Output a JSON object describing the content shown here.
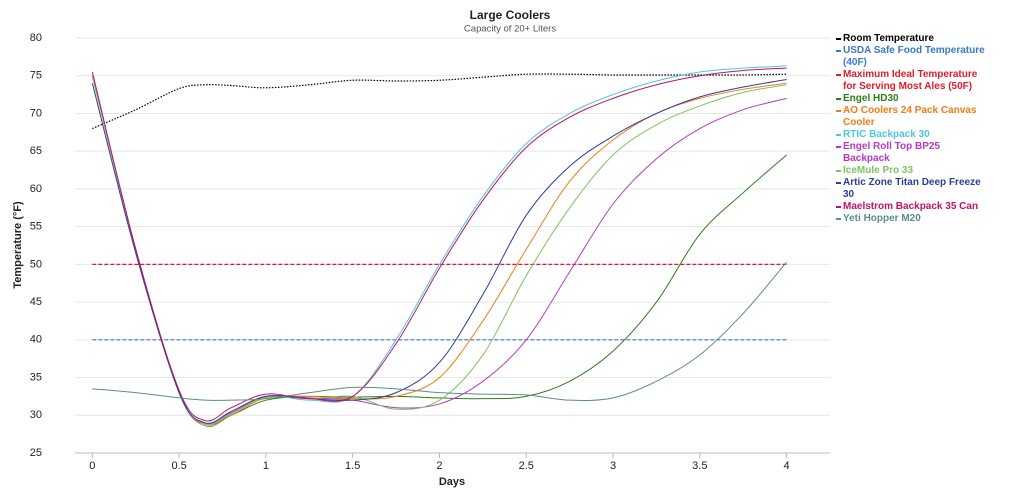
{
  "chart_data": {
    "type": "line",
    "title": "Large Coolers",
    "subtitle": "Capacity of 20+ Liters",
    "x_label": "Days",
    "y_label": "Temperature (°F)",
    "x": [
      0,
      0.25,
      0.5,
      0.65,
      0.8,
      1,
      1.25,
      1.5,
      1.75,
      2,
      2.25,
      2.5,
      2.75,
      3,
      3.25,
      3.5,
      3.75,
      4
    ],
    "xlim": [
      -0.1,
      4.25
    ],
    "xticks": [
      0,
      0.5,
      1,
      1.5,
      2,
      2.5,
      3,
      3.5,
      4
    ],
    "ylim": [
      25,
      80
    ],
    "yticks": [
      25,
      30,
      35,
      40,
      45,
      50,
      55,
      60,
      65,
      70,
      75,
      80
    ],
    "grid": true,
    "legend": "right",
    "series": [
      {
        "name": "Room Temperature",
        "color": "#000000",
        "style": "dotted",
        "values": [
          68,
          70.5,
          73.3,
          73.8,
          73.7,
          73.4,
          73.8,
          74.4,
          74.3,
          74.4,
          74.8,
          75.2,
          75.2,
          75.1,
          75.1,
          75.1,
          75.1,
          75.2
        ]
      },
      {
        "name": "USDA Safe Food Temperature (40F)",
        "color": "#3a78c9",
        "style": "dashed",
        "values": [
          40,
          40,
          40,
          40,
          40,
          40,
          40,
          40,
          40,
          40,
          40,
          40,
          40,
          40,
          40,
          40,
          40,
          40
        ]
      },
      {
        "name": "Maximum Ideal Temperature for Serving Most Ales (50F)",
        "color": "#e01a2a",
        "style": "dashed",
        "values": [
          50,
          50,
          50,
          50,
          50,
          50,
          50,
          50,
          50,
          50,
          50,
          50,
          50,
          50,
          50,
          50,
          50,
          50
        ]
      },
      {
        "name": "Engel HD30",
        "color": "#2e7d1a",
        "style": "solid",
        "values": [
          75,
          52,
          33,
          28.8,
          30,
          32,
          32.5,
          32.4,
          32.5,
          32.3,
          32.2,
          32.5,
          34.5,
          38.5,
          45,
          54,
          59.5,
          64.5
        ]
      },
      {
        "name": "AO Coolers 24 Pack Canvas Cooler",
        "color": "#f07d12",
        "style": "solid",
        "values": [
          75,
          52,
          33,
          28.6,
          30,
          32.3,
          32.5,
          32.2,
          32.5,
          35,
          42.5,
          52,
          61,
          66.5,
          70,
          72,
          73.2,
          74
        ]
      },
      {
        "name": "RTIC Backpack 30",
        "color": "#4dc8e0",
        "style": "solid",
        "values": [
          75,
          52,
          33,
          28.8,
          30.2,
          32.5,
          32,
          32.5,
          40,
          50,
          59,
          66,
          70,
          72.5,
          74.3,
          75.5,
          76,
          76.3
        ]
      },
      {
        "name": "Engel Roll Top BP25 Backpack",
        "color": "#b638c8",
        "style": "solid",
        "values": [
          75,
          52,
          33,
          28.9,
          30.3,
          32.5,
          32.3,
          32,
          31,
          31.5,
          34.5,
          40,
          49,
          58,
          64,
          68,
          70.5,
          72
        ]
      },
      {
        "name": "IceMule Pro 33",
        "color": "#7cc45c",
        "style": "solid",
        "values": [
          75,
          52,
          33,
          28.9,
          30.2,
          32.4,
          32.2,
          32.5,
          30.8,
          32,
          38,
          48.5,
          57.5,
          64.5,
          68.5,
          71,
          72.8,
          73.8
        ]
      },
      {
        "name": "Artic Zone Titan Deep Freeze 30",
        "color": "#2b3f9a",
        "style": "solid",
        "values": [
          74,
          51.5,
          33,
          29,
          30.5,
          32.5,
          32.2,
          32,
          33,
          37,
          46,
          56.5,
          63,
          67,
          70,
          72.2,
          73.5,
          74.5
        ]
      },
      {
        "name": "Maelstrom Backpack 35 Can",
        "color": "#c0126b",
        "style": "solid",
        "values": [
          75.5,
          52,
          33.3,
          29.3,
          31,
          32.8,
          32.2,
          32.5,
          39.5,
          49.5,
          58.5,
          65.5,
          69.5,
          72,
          73.8,
          75,
          75.7,
          76
        ]
      },
      {
        "name": "Yeti Hopper M20",
        "color": "#5a8f86",
        "style": "solid",
        "values": [
          33.5,
          33,
          32.3,
          32,
          32,
          32.2,
          33,
          33.7,
          33.5,
          33,
          32.8,
          32.7,
          32,
          32.3,
          34.5,
          38,
          43.5,
          50.3
        ]
      }
    ]
  }
}
